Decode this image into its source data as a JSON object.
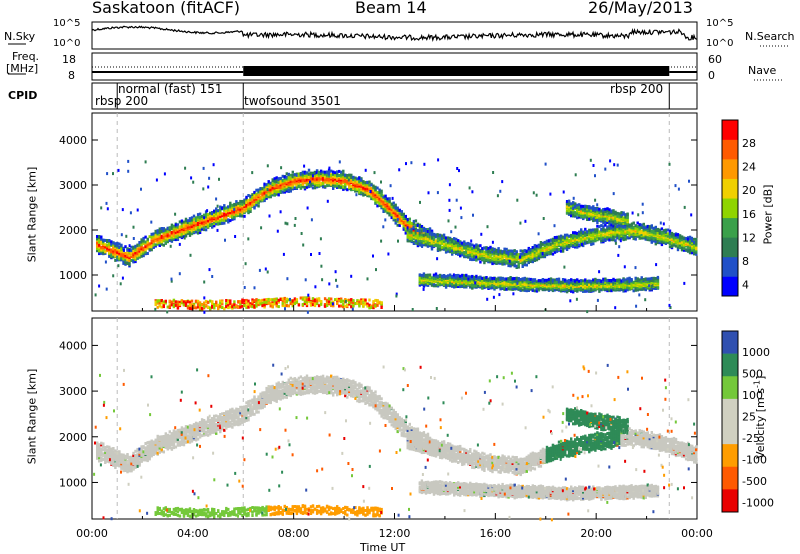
{
  "header": {
    "station": "Saskatoon  (fitACF)",
    "beam": "Beam 14",
    "date": "26/May/2013"
  },
  "strips": {
    "noise_left": "N.Sky",
    "noise_right": "N.Search",
    "noise_ticks": [
      "10^5",
      "10^0"
    ],
    "freq_left_1": "Freq.",
    "freq_left_2": "[MHz]",
    "freq_right": "Nave",
    "freq_ticks": [
      "18",
      "8"
    ],
    "nave_ticks": [
      "60",
      "0"
    ],
    "cpid_label": "CPID",
    "cpid_segments": [
      {
        "label": "rbsp 200",
        "start": 0.0,
        "end": 1.0
      },
      {
        "label": "normal (fast) 151",
        "start": 1.0,
        "end": 6.0
      },
      {
        "label": "twofsound 3501",
        "start": 6.0,
        "end": 22.9
      },
      {
        "label": "rbsp 200",
        "start": 22.9,
        "end": 24.0
      }
    ]
  },
  "colors": {
    "power": [
      "#0000ff",
      "#2050c8",
      "#2e7d52",
      "#3aa04a",
      "#8fd400",
      "#f0d000",
      "#ff9900",
      "#ff5a00",
      "#ff0000"
    ],
    "velocity": [
      "#e80000",
      "#ff5a00",
      "#ff9d00",
      "#cfcfc0",
      "#cfcfc0",
      "#74c83a",
      "#2e8b57",
      "#3050b0"
    ],
    "ground_gray": "#c8c8c0"
  },
  "chart_data": [
    {
      "type": "heatmap",
      "name_of_panel": "power",
      "ylabel": "Slant Range [km]",
      "ylim": [
        200,
        4600
      ],
      "yticks": [
        "1000",
        "2000",
        "3000",
        "4000"
      ],
      "xlim": [
        0,
        24
      ],
      "xticks": [
        "00:00",
        "04:00",
        "08:00",
        "12:00",
        "16:00",
        "20:00",
        "00:00"
      ],
      "colorbar_label": "Power [dB]",
      "colorbar_ticks": [
        "28",
        "24",
        "20",
        "16",
        "12",
        "8",
        "4"
      ],
      "echo_bands": [
        {
          "t": [
            0.2,
            1.5,
            2.5,
            4.0,
            5.0,
            6.0,
            7.0,
            8.0,
            9.0,
            10.0,
            11.0,
            11.8,
            12.5,
            13.5
          ],
          "r": [
            1700,
            1400,
            1800,
            2100,
            2300,
            2500,
            2900,
            3100,
            3150,
            3100,
            2900,
            2500,
            2100,
            1800
          ],
          "width": 260
        },
        {
          "t": [
            12.5,
            14.0,
            15.5,
            17.0,
            18.5,
            20.0,
            21.5,
            23.0,
            24.0
          ],
          "r": [
            1900,
            1700,
            1450,
            1350,
            1700,
            1900,
            2000,
            1800,
            1600
          ],
          "width": 240
        },
        {
          "t": [
            13.0,
            15.0,
            17.0,
            19.0,
            21.0,
            22.5
          ],
          "r": [
            900,
            850,
            800,
            760,
            780,
            820
          ],
          "width": 180
        },
        {
          "t": [
            18.8,
            19.5,
            20.5,
            21.3
          ],
          "r": [
            2500,
            2400,
            2300,
            2200
          ],
          "width": 220
        }
      ],
      "near_range": {
        "t": [
          2.5,
          3.5,
          4.5,
          5.5,
          6.5,
          7.5,
          8.5,
          9.5,
          10.5,
          11.5
        ],
        "r": [
          400,
          380,
          360,
          380,
          400,
          420,
          440,
          420,
          400,
          380
        ],
        "width": 180
      }
    },
    {
      "type": "heatmap",
      "name_of_panel": "velocity",
      "ylabel": "Slant Range [km]",
      "ylim": [
        200,
        4600
      ],
      "yticks": [
        "1000",
        "2000",
        "3000",
        "4000"
      ],
      "xlim": [
        0,
        24
      ],
      "xticks": [
        "00:00",
        "04:00",
        "08:00",
        "12:00",
        "16:00",
        "20:00",
        "00:00"
      ],
      "xlabel": "Time UT",
      "colorbar_label": "Velocity [m s",
      "colorbar_label_sup": "-1",
      "colorbar_label_end": "]",
      "colorbar_ticks": [
        "1000",
        "500",
        "100",
        "25",
        "-25",
        "-100",
        "-500",
        "-1000"
      ]
    }
  ]
}
